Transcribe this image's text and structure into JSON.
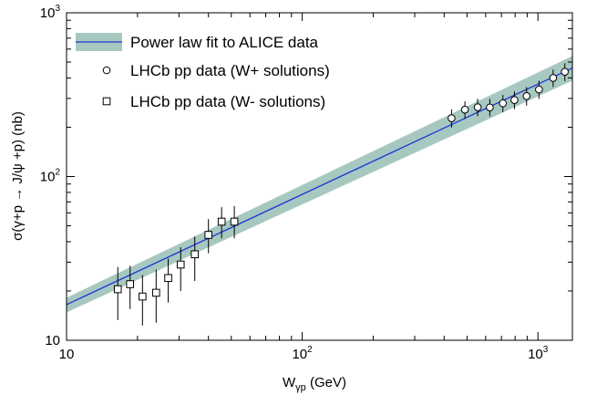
{
  "chart_data": {
    "type": "scatter",
    "xscale": "log",
    "yscale": "log",
    "xlim": [
      10,
      1400
    ],
    "ylim": [
      10,
      1000
    ],
    "x_ticks": [
      {
        "value": 10,
        "base": "10",
        "exp": ""
      },
      {
        "value": 100,
        "base": "10",
        "exp": "2"
      },
      {
        "value": 1000,
        "base": "10",
        "exp": "3"
      }
    ],
    "y_ticks": [
      {
        "value": 10,
        "base": "10",
        "exp": ""
      },
      {
        "value": 100,
        "base": "10",
        "exp": "2"
      },
      {
        "value": 1000,
        "base": "10",
        "exp": "3"
      }
    ],
    "xlabel": {
      "main": "W",
      "sub": "γp",
      "unit": " (GeV)"
    },
    "ylabel": "σ(γ+p → J/ψ +p) (nb)",
    "grid": false,
    "legend_position": "top-left",
    "colors": {
      "fit_line": "#1a36d6",
      "band": "#a7c8c0",
      "markers": "#000000"
    },
    "fit": {
      "name": "Power law fit to ALICE data",
      "points": [
        [
          10,
          16.5
        ],
        [
          1400,
          460
        ]
      ],
      "band_lower": [
        [
          10,
          14.8
        ],
        [
          1400,
          385
        ]
      ],
      "band_upper": [
        [
          10,
          18.2
        ],
        [
          1400,
          545
        ]
      ]
    },
    "series": [
      {
        "name": "LHCb pp data (W+ solutions)",
        "marker": "circle",
        "points": [
          {
            "x": 430,
            "y": 227,
            "lo": 199,
            "hi": 257
          },
          {
            "x": 490,
            "y": 256,
            "lo": 225,
            "hi": 288
          },
          {
            "x": 555,
            "y": 265,
            "lo": 234,
            "hi": 298
          },
          {
            "x": 625,
            "y": 264,
            "lo": 233,
            "hi": 298
          },
          {
            "x": 710,
            "y": 280,
            "lo": 247,
            "hi": 315
          },
          {
            "x": 795,
            "y": 293,
            "lo": 258,
            "hi": 331
          },
          {
            "x": 895,
            "y": 310,
            "lo": 271,
            "hi": 352
          },
          {
            "x": 1010,
            "y": 340,
            "lo": 298,
            "hi": 385
          },
          {
            "x": 1160,
            "y": 400,
            "lo": 352,
            "hi": 450
          },
          {
            "x": 1300,
            "y": 436,
            "lo": 383,
            "hi": 492
          }
        ]
      },
      {
        "name": "LHCb pp data (W- solutions)",
        "marker": "square",
        "points": [
          {
            "x": 16.5,
            "y": 20.5,
            "lo": 13.3,
            "hi": 28
          },
          {
            "x": 18.6,
            "y": 22.0,
            "lo": 15.5,
            "hi": 28.5
          },
          {
            "x": 21.0,
            "y": 18.5,
            "lo": 12.3,
            "hi": 25
          },
          {
            "x": 24.0,
            "y": 19.5,
            "lo": 12.8,
            "hi": 27
          },
          {
            "x": 27.0,
            "y": 24.0,
            "lo": 17.0,
            "hi": 31.5
          },
          {
            "x": 30.5,
            "y": 29.0,
            "lo": 20.0,
            "hi": 37.0
          },
          {
            "x": 35.0,
            "y": 33.5,
            "lo": 23.0,
            "hi": 43.0
          },
          {
            "x": 40.0,
            "y": 44.0,
            "lo": 34.0,
            "hi": 55.0
          },
          {
            "x": 45.5,
            "y": 53.0,
            "lo": 42.0,
            "hi": 65.0
          },
          {
            "x": 51.5,
            "y": 53.0,
            "lo": 42.0,
            "hi": 66.0
          }
        ]
      }
    ]
  }
}
